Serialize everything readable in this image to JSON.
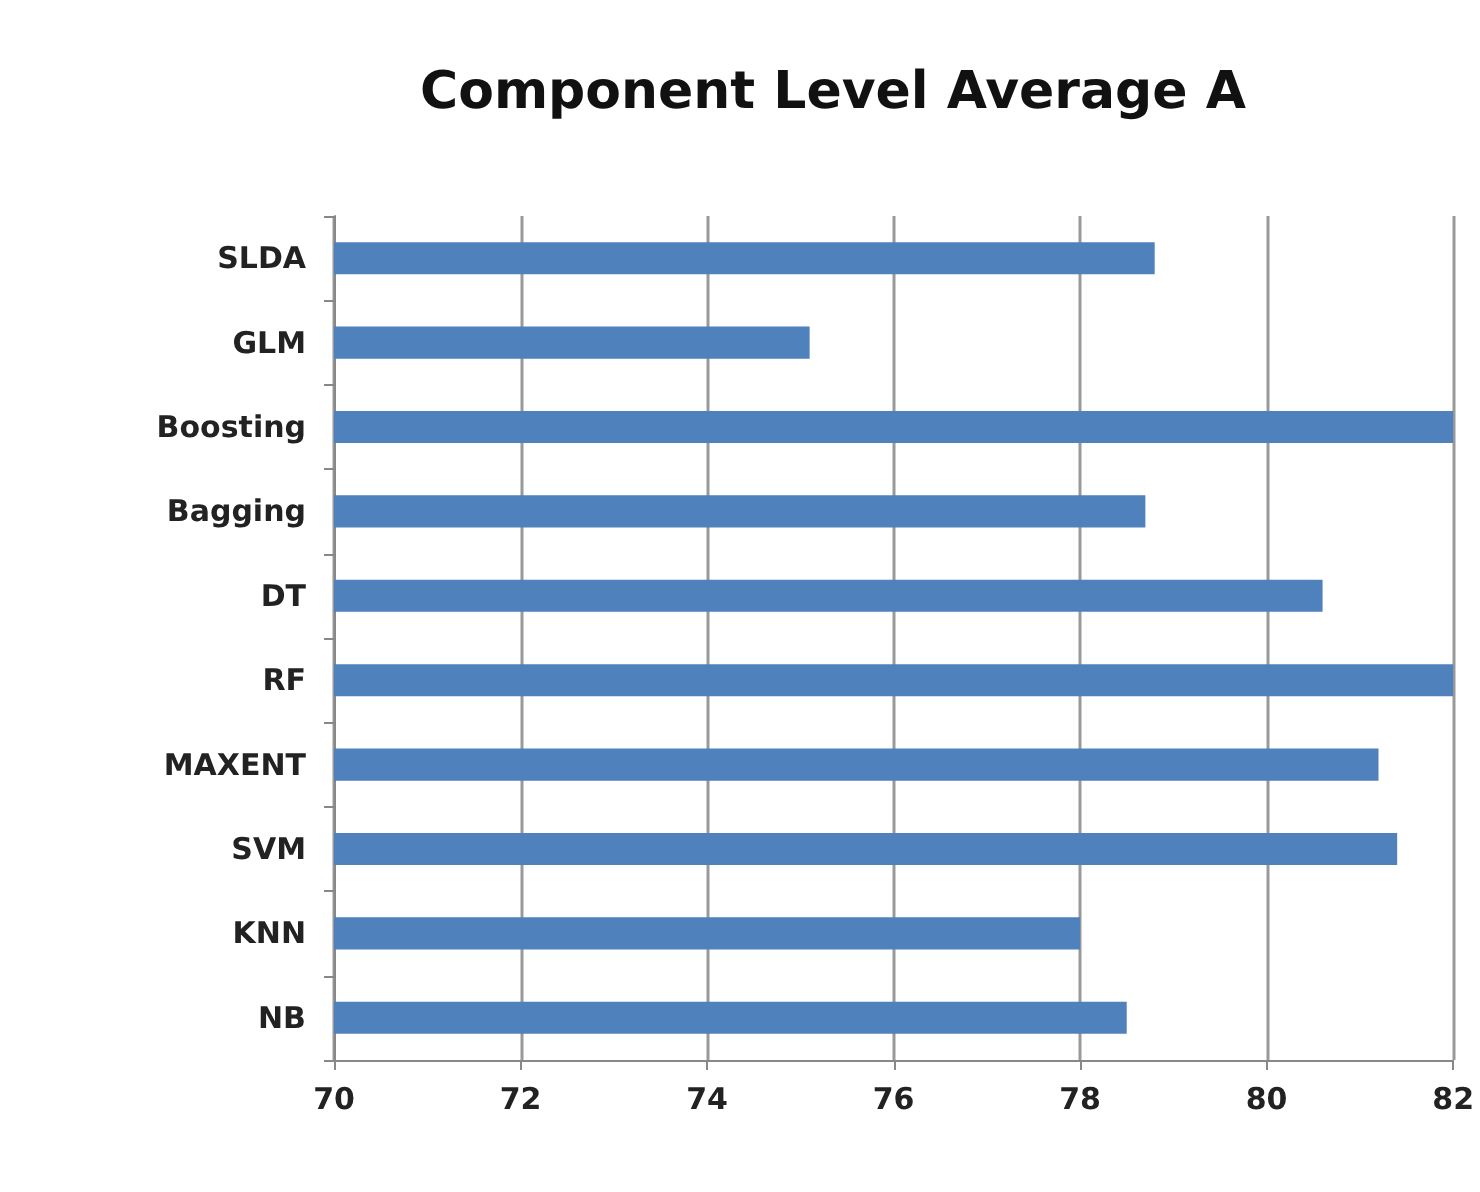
{
  "chart_data": {
    "type": "bar",
    "orientation": "horizontal",
    "title": "Component Level Average A",
    "categories": [
      "SLDA",
      "GLM",
      "Boosting",
      "Bagging",
      "DT",
      "RF",
      "MAXENT",
      "SVM",
      "KNN",
      "NB"
    ],
    "values": [
      78.8,
      75.1,
      82,
      78.7,
      80.6,
      82,
      81.2,
      81.4,
      78.0,
      78.5
    ],
    "color": "#4f81bd",
    "xlim": [
      70,
      82
    ],
    "xticks": [
      70,
      72,
      74,
      76,
      78,
      80,
      82
    ],
    "grid": "x"
  }
}
